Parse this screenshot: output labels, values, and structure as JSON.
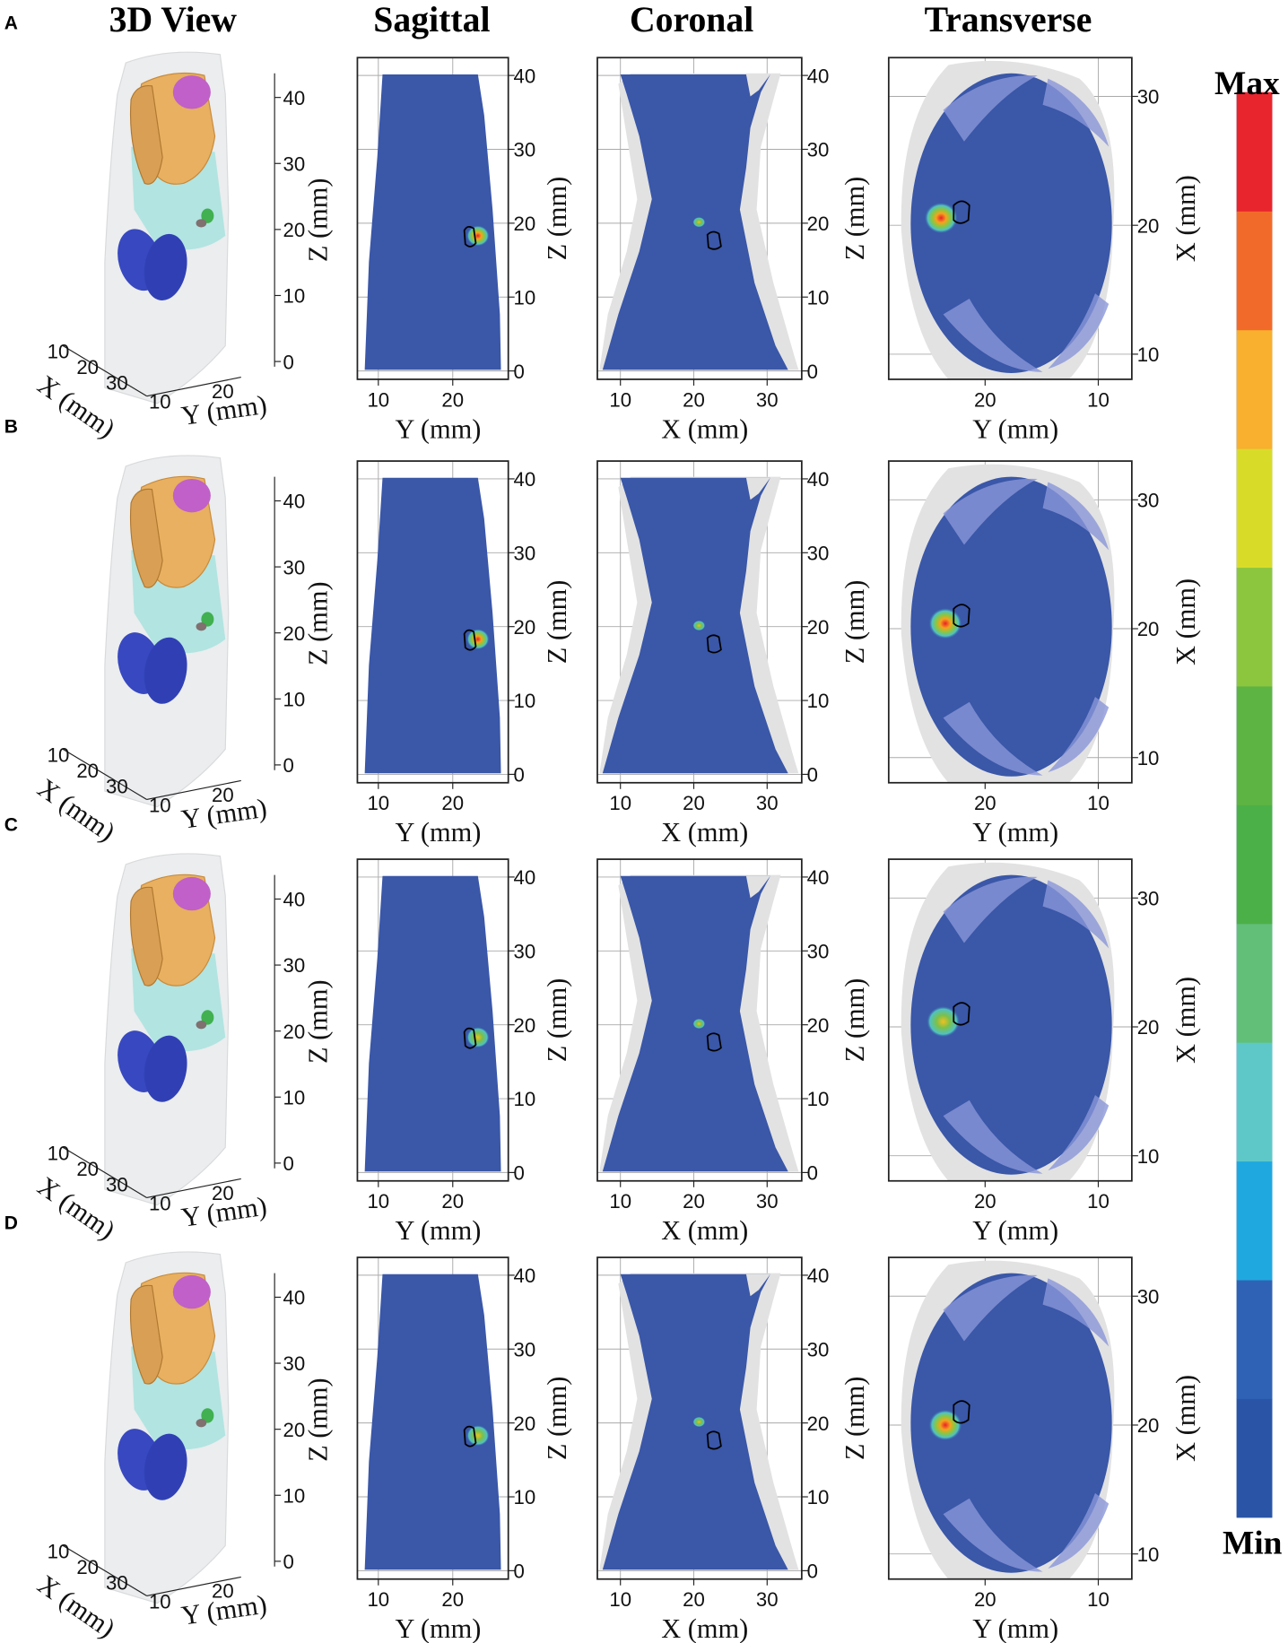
{
  "headers": [
    "3D View",
    "Sagittal",
    "Coronal",
    "Transverse"
  ],
  "rows": [
    {
      "label": "A"
    },
    {
      "label": "B"
    },
    {
      "label": "C"
    },
    {
      "label": "D"
    }
  ],
  "panels": {
    "view3d": {
      "z_ticks": [
        0,
        10,
        20,
        30,
        40
      ],
      "x_ticks": [
        10,
        20,
        30
      ],
      "y_ticks": [
        10,
        20
      ],
      "z_label": "Z (mm)",
      "x_label": "X (mm)",
      "y_label": "Y (mm)"
    },
    "sagittal": {
      "z_ticks": [
        0,
        10,
        20,
        30,
        40
      ],
      "h_ticks": [
        10,
        20
      ],
      "z_label": "Z (mm)",
      "h_label": "Y (mm)"
    },
    "coronal": {
      "z_ticks": [
        0,
        10,
        20,
        30,
        40
      ],
      "h_ticks": [
        10,
        20,
        30
      ],
      "z_label": "Z (mm)",
      "h_label": "X (mm)"
    },
    "transverse": {
      "v_ticks": [
        10,
        20,
        30
      ],
      "h_ticks": [
        20,
        10
      ],
      "v_label": "X (mm)",
      "h_label": "Y (mm)"
    }
  },
  "colorbar": {
    "max": "Max",
    "min": "Min"
  }
}
